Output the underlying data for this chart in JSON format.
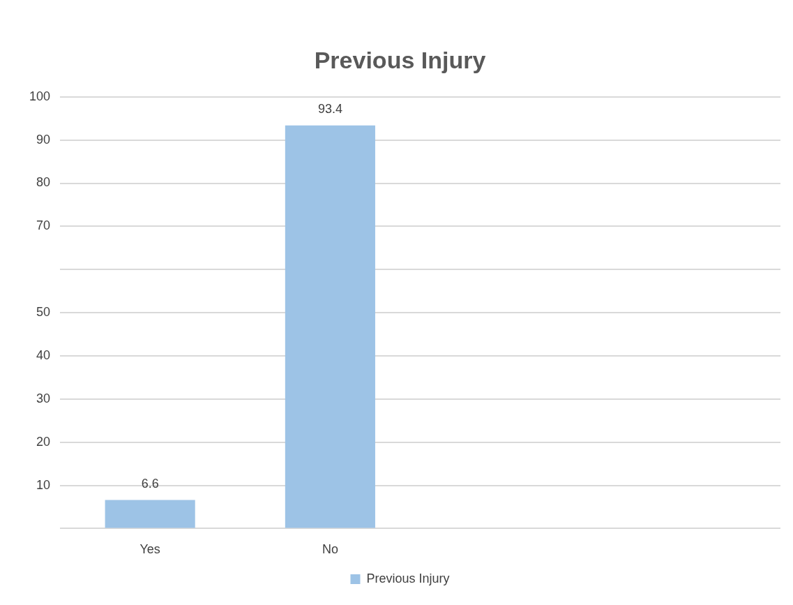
{
  "chart_data": {
    "type": "bar",
    "title": "Previous Injury",
    "categories": [
      "Yes",
      "No",
      null,
      null
    ],
    "series": [
      {
        "name": "Previous Injury",
        "color": "#9dc3e6",
        "values": [
          6.6,
          93.4,
          null,
          null
        ]
      }
    ],
    "ylim": [
      0,
      100
    ],
    "yticks": [
      {
        "value": 0,
        "label": null
      },
      10,
      20,
      30,
      40,
      50,
      {
        "value": 60,
        "label": null
      },
      70,
      80,
      90,
      100
    ],
    "grid": "y",
    "legend": "bottom",
    "data_labels": true
  }
}
